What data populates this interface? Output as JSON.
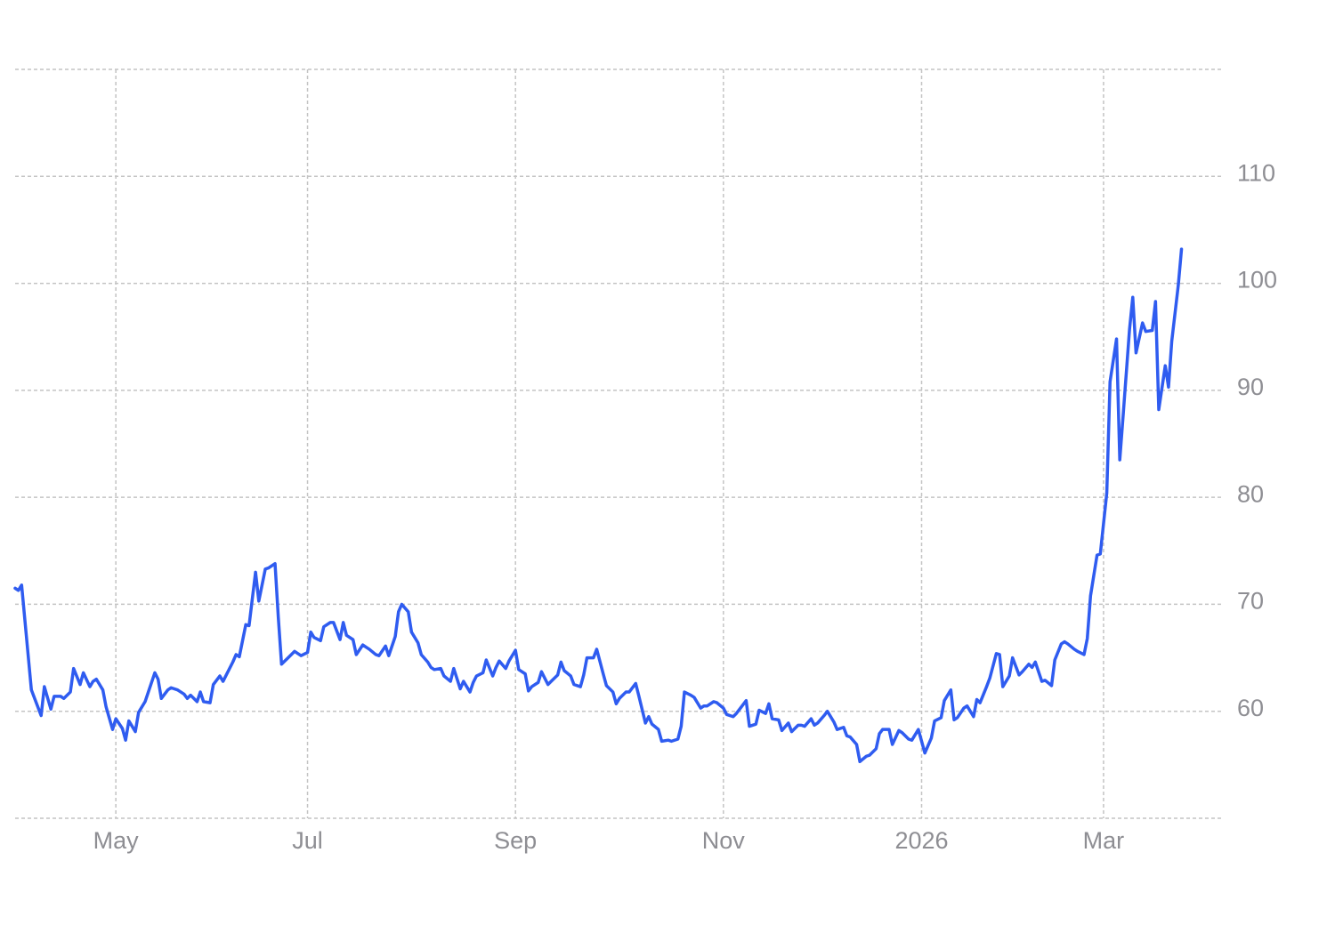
{
  "chart_data": {
    "type": "line",
    "color": "#2f5cf0",
    "grid": true,
    "xlim": [
      -1,
      371
    ],
    "ylim": [
      50,
      120
    ],
    "yticks": [
      60,
      70,
      80,
      90,
      100,
      110
    ],
    "xticks": [
      {
        "value": 30,
        "label": "May"
      },
      {
        "value": 89,
        "label": "Jul"
      },
      {
        "value": 153,
        "label": "Sep"
      },
      {
        "value": 217,
        "label": "Nov"
      },
      {
        "value": 278,
        "label": "2026"
      },
      {
        "value": 334,
        "label": "Mar"
      }
    ],
    "x": [
      -1,
      0,
      1,
      4,
      7,
      8,
      10,
      11,
      13,
      14,
      16,
      17,
      19,
      20,
      22,
      23,
      24,
      26,
      27,
      29,
      30,
      32,
      33,
      34,
      36,
      37,
      39,
      40,
      42,
      43,
      44,
      46,
      47,
      49,
      51,
      52,
      53,
      55,
      56,
      57,
      59,
      60,
      62,
      63,
      64,
      66,
      67,
      68,
      70,
      71,
      73,
      74,
      76,
      77,
      79,
      80,
      81,
      83,
      84,
      85,
      87,
      89,
      90,
      91,
      93,
      94,
      96,
      97,
      99,
      100,
      101,
      103,
      104,
      106,
      107,
      108,
      110,
      111,
      113,
      114,
      116,
      117,
      118,
      120,
      121,
      123,
      124,
      126,
      127,
      128,
      130,
      131,
      133,
      134,
      136,
      137,
      139,
      140,
      141,
      143,
      144,
      146,
      147,
      148,
      150,
      151,
      153,
      154,
      156,
      157,
      158,
      160,
      161,
      163,
      164,
      166,
      167,
      168,
      170,
      171,
      173,
      174,
      175,
      177,
      178,
      180,
      181,
      183,
      184,
      185,
      187,
      188,
      190,
      191,
      193,
      194,
      195,
      197,
      198,
      200,
      201,
      203,
      204,
      205,
      207,
      208,
      210,
      211,
      212,
      214,
      215,
      217,
      218,
      220,
      221,
      222,
      224,
      225,
      227,
      228,
      230,
      231,
      232,
      234,
      235,
      237,
      238,
      240,
      241,
      242,
      244,
      245,
      246,
      248,
      249,
      251,
      252,
      254,
      255,
      256,
      258,
      259,
      261,
      262,
      264,
      265,
      266,
      268,
      269,
      271,
      272,
      274,
      275,
      277,
      278,
      279,
      281,
      282,
      284,
      285,
      287,
      288,
      289,
      291,
      292,
      294,
      295,
      296,
      298,
      299,
      301,
      302,
      303,
      305,
      306,
      308,
      309,
      311,
      312,
      313,
      315,
      316,
      318,
      319,
      321,
      322,
      323,
      325,
      326,
      328,
      329,
      330,
      332,
      333,
      335,
      336,
      338,
      339,
      340,
      342,
      343,
      344,
      346,
      347,
      349,
      350,
      351,
      353,
      354,
      355,
      357,
      358
    ],
    "values": [
      71.5,
      71.3,
      71.8,
      62,
      59.6,
      62.3,
      60.2,
      61.4,
      61.4,
      61.2,
      61.8,
      64,
      62.5,
      63.6,
      62.3,
      62.8,
      63,
      62,
      60.4,
      58.3,
      59.3,
      58.4,
      57.3,
      59.1,
      58.1,
      59.9,
      60.9,
      61.8,
      63.6,
      63,
      61.2,
      62,
      62.2,
      62,
      61.6,
      61.2,
      61.5,
      60.9,
      61.8,
      60.9,
      60.8,
      62.5,
      63.3,
      62.8,
      63.4,
      64.6,
      65.3,
      65.1,
      68.1,
      68,
      73,
      70.3,
      73.3,
      73.4,
      73.8,
      68.8,
      64.4,
      65,
      65.3,
      65.6,
      65.2,
      65.5,
      67.4,
      66.9,
      66.6,
      67.9,
      68.3,
      68.3,
      66.7,
      68.3,
      67.1,
      66.7,
      65.3,
      66.2,
      66,
      65.8,
      65.3,
      65.2,
      66.1,
      65.2,
      67,
      69.3,
      70,
      69.3,
      67.4,
      66.4,
      65.3,
      64.6,
      64.1,
      63.9,
      64,
      63.3,
      62.8,
      64,
      62.1,
      62.8,
      61.8,
      62.7,
      63.3,
      63.6,
      64.8,
      63.3,
      64.1,
      64.7,
      64,
      64.7,
      65.7,
      63.9,
      63.5,
      61.9,
      62.3,
      62.7,
      63.7,
      62.5,
      62.8,
      63.4,
      64.6,
      63.8,
      63.3,
      62.5,
      62.3,
      63.4,
      65,
      65,
      65.8,
      63.5,
      62.4,
      61.8,
      60.7,
      61.2,
      61.8,
      61.8,
      62.6,
      61.4,
      58.9,
      59.5,
      58.8,
      58.3,
      57.2,
      57.3,
      57.2,
      57.4,
      58.6,
      61.8,
      61.5,
      61.3,
      60.3,
      60.5,
      60.5,
      60.9,
      60.8,
      60.3,
      59.7,
      59.5,
      59.8,
      60.2,
      61,
      58.6,
      58.8,
      60.1,
      59.8,
      60.7,
      59.3,
      59.2,
      58.2,
      58.9,
      58.1,
      58.7,
      58.7,
      58.6,
      59.3,
      58.7,
      58.9,
      59.6,
      60,
      59,
      58.3,
      58.5,
      57.7,
      57.6,
      56.9,
      55.3,
      55.8,
      55.9,
      56.5,
      57.9,
      58.3,
      58.3,
      56.9,
      58.2,
      58,
      57.4,
      57.3,
      58.3,
      57.2,
      56.1,
      57.5,
      59.1,
      59.4,
      61,
      62,
      59.2,
      59.4,
      60.3,
      60.5,
      59.5,
      61.1,
      60.8,
      62.3,
      63.1,
      65.4,
      65.3,
      62.3,
      63.3,
      65,
      63.4,
      63.7,
      64.4,
      64.1,
      64.6,
      62.8,
      62.9,
      62.4,
      64.8,
      66.3,
      66.5,
      66.3,
      65.8,
      65.6,
      65.3,
      66.8,
      70.8,
      74.6,
      74.7,
      80.4,
      90.8,
      94.8,
      83.5,
      87.5,
      95.7,
      98.7,
      93.5,
      96.3,
      95.5,
      95.6,
      98.3,
      88.2,
      92.3,
      90.3,
      94.6,
      99.8,
      103.2
    ]
  }
}
